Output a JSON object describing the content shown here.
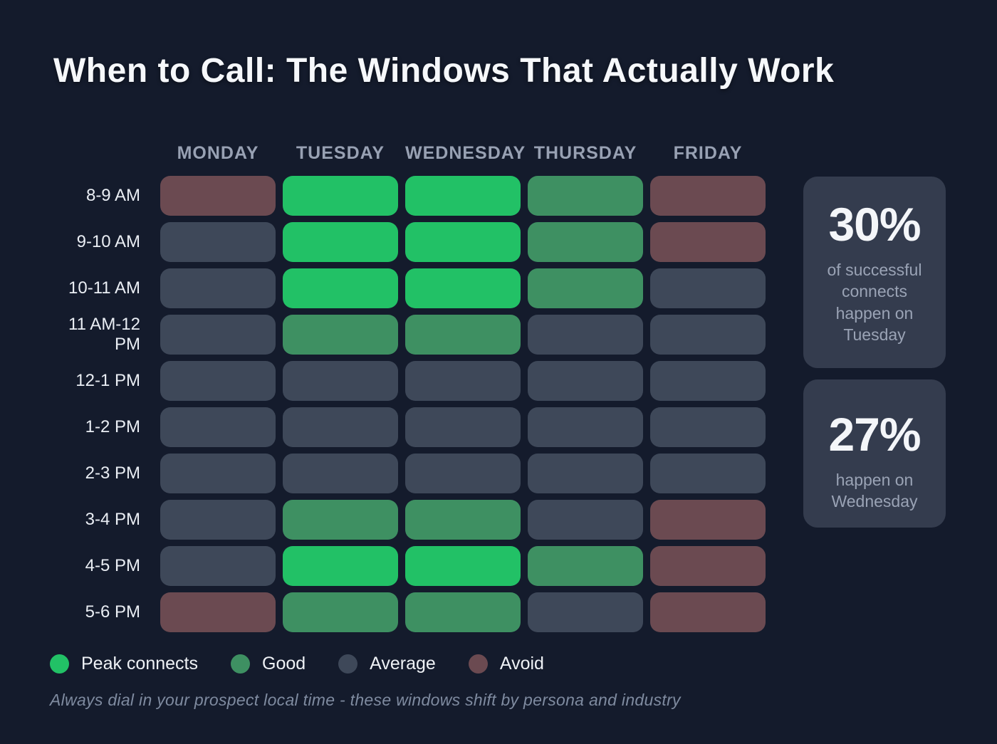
{
  "title": "When to Call: The Windows That Actually Work",
  "colors": {
    "background": "#141b2c",
    "peak": "#22c166",
    "good": "#3e9062",
    "average": "#3e4859",
    "avoid": "#6b4a51",
    "card_background": "#343c4e"
  },
  "chart_data": {
    "type": "heatmap",
    "title": "When to Call: The Windows That Actually Work",
    "columns": [
      "MONDAY",
      "TUESDAY",
      "WEDNESDAY",
      "THURSDAY",
      "FRIDAY"
    ],
    "rows": [
      "8-9 AM",
      "9-10 AM",
      "10-11 AM",
      "11 AM-12 PM",
      "12-1 PM",
      "1-2 PM",
      "2-3 PM",
      "3-4 PM",
      "4-5 PM",
      "5-6 PM"
    ],
    "values": [
      [
        "avoid",
        "peak",
        "peak",
        "good",
        "avoid"
      ],
      [
        "average",
        "peak",
        "peak",
        "good",
        "avoid"
      ],
      [
        "average",
        "peak",
        "peak",
        "good",
        "average"
      ],
      [
        "average",
        "good",
        "good",
        "average",
        "average"
      ],
      [
        "average",
        "average",
        "average",
        "average",
        "average"
      ],
      [
        "average",
        "average",
        "average",
        "average",
        "average"
      ],
      [
        "average",
        "average",
        "average",
        "average",
        "average"
      ],
      [
        "average",
        "good",
        "good",
        "average",
        "avoid"
      ],
      [
        "average",
        "peak",
        "peak",
        "good",
        "avoid"
      ],
      [
        "avoid",
        "good",
        "good",
        "average",
        "avoid"
      ]
    ],
    "legend_position": "bottom",
    "legend": [
      {
        "label": "Peak connects",
        "key": "peak",
        "color": "#22c166"
      },
      {
        "label": "Good",
        "key": "good",
        "color": "#3e9062"
      },
      {
        "label": "Average",
        "key": "average",
        "color": "#3e4859"
      },
      {
        "label": "Avoid",
        "key": "avoid",
        "color": "#6b4a51"
      }
    ]
  },
  "stat_cards": [
    {
      "value": "30%",
      "description": "of successful connects happen on Tuesday"
    },
    {
      "value": "27%",
      "description": "happen on Wednesday"
    }
  ],
  "footnote": "Always dial in your prospect local time - these windows shift by persona and industry"
}
